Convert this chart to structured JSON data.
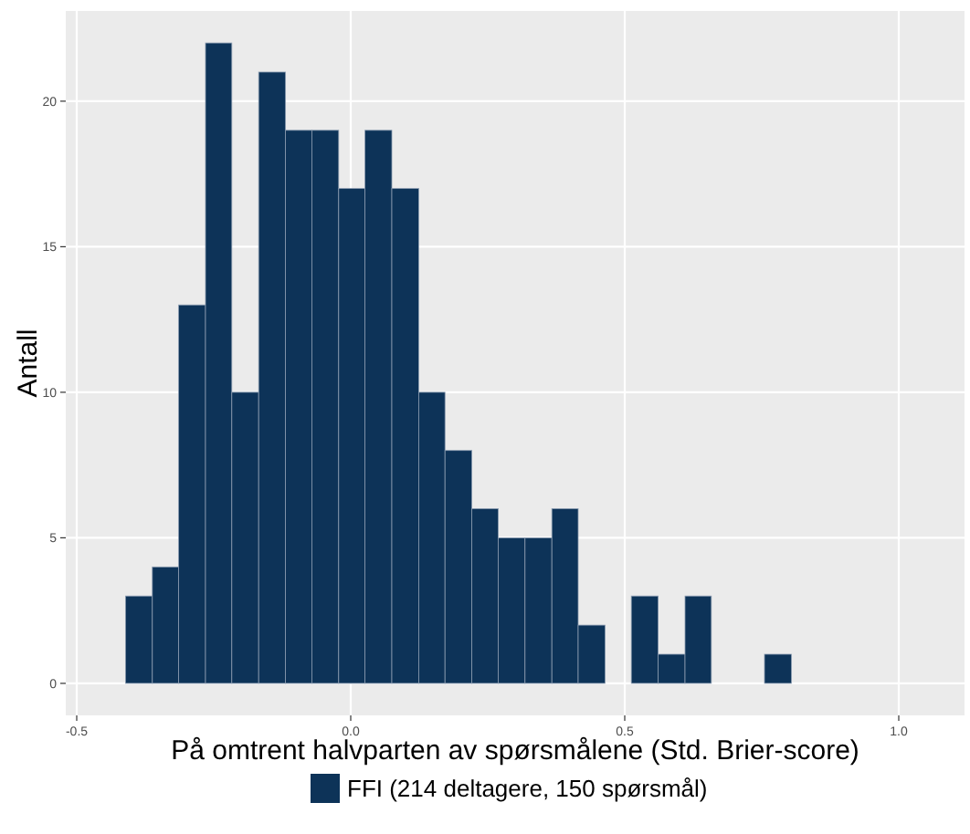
{
  "chart_data": {
    "type": "histogram",
    "xlabel": "På omtrent halvparten av spørsmålene (Std. Brier-score)",
    "ylabel": "Antall",
    "bins": [
      -0.411,
      -0.362,
      -0.314,
      -0.265,
      -0.217,
      -0.168,
      -0.119,
      -0.071,
      -0.022,
      0.026,
      0.075,
      0.124,
      0.172,
      0.221,
      0.269,
      0.318,
      0.367,
      0.415,
      0.464,
      0.512,
      0.561,
      0.61,
      0.658,
      0.755,
      0.804
    ],
    "series": [
      {
        "name": "FFI (214 deltagere, 150 spørsmål)",
        "color": "#0d3358",
        "values": [
          3,
          4,
          13,
          22,
          10,
          21,
          19,
          19,
          17,
          19,
          17,
          10,
          8,
          6,
          5,
          5,
          6,
          2,
          0,
          3,
          1,
          3,
          0,
          1
        ]
      }
    ],
    "xlim": [
      -0.52,
      1.12
    ],
    "ylim": [
      -1.1,
      23.1
    ],
    "xticks": [
      {
        "value": -0.5,
        "label": "-0.5"
      },
      {
        "value": 0,
        "label": "0.0"
      },
      {
        "value": 0.5,
        "label": "0.5"
      },
      {
        "value": 1,
        "label": "1.0"
      }
    ],
    "yticks": [
      0,
      5,
      10,
      15,
      20
    ],
    "grid": true,
    "legend": "bottom"
  }
}
